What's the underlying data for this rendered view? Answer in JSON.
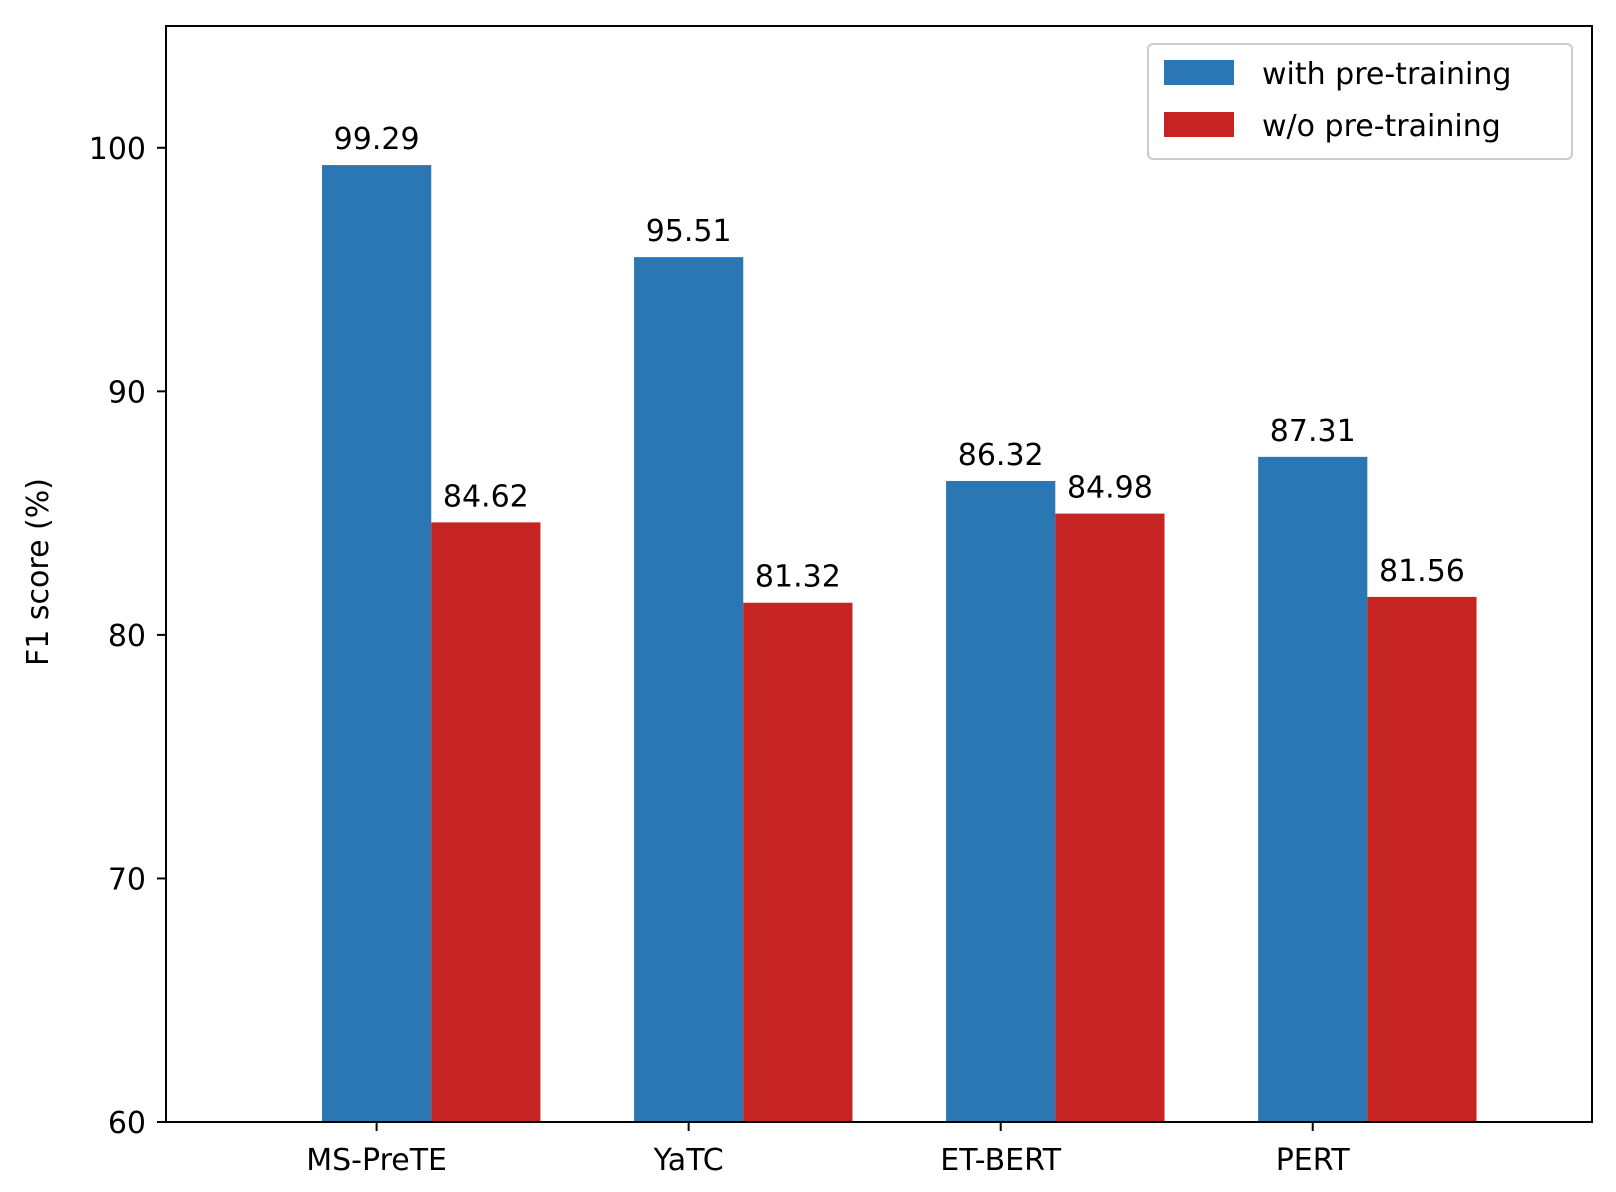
{
  "chart_data": {
    "type": "bar",
    "title": "",
    "xlabel": "",
    "ylabel": "F1 score (%)",
    "ylim": [
      60,
      105
    ],
    "yticks": [
      60,
      70,
      80,
      90,
      100
    ],
    "grid": false,
    "legend_position": "top-right",
    "categories": [
      "MS-PreTE",
      "YaTC",
      "ET-BERT",
      "PERT"
    ],
    "series": [
      {
        "name": "with pre-training",
        "color": "#2a77b4",
        "values": [
          99.29,
          95.51,
          86.32,
          87.31
        ],
        "labels": [
          "99.29",
          "95.51",
          "86.32",
          "87.31"
        ]
      },
      {
        "name": "w/o pre-training",
        "color": "#c62323",
        "values": [
          84.62,
          81.32,
          84.98,
          81.56
        ],
        "labels": [
          "84.62",
          "81.32",
          "84.98",
          "81.56"
        ]
      }
    ]
  }
}
